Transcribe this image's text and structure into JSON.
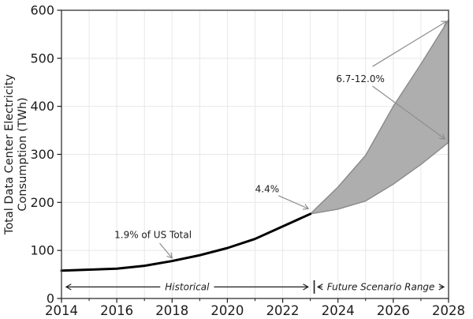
{
  "chart_data": {
    "type": "line",
    "title": "",
    "ylabel_lines": [
      "Total Data Center Electricity",
      "Consumption (TWh)"
    ],
    "xlabel": "",
    "xlim": [
      2014,
      2028
    ],
    "ylim": [
      0,
      600
    ],
    "x_major_ticks": [
      2014,
      2016,
      2018,
      2020,
      2022,
      2024,
      2026,
      2028
    ],
    "x_minor_ticks": [
      2015,
      2017,
      2019,
      2021,
      2023,
      2025,
      2027
    ],
    "y_major_ticks": [
      0,
      100,
      200,
      300,
      400,
      500,
      600
    ],
    "grid": {
      "vertical_every_year": true,
      "horizontal_every": 100
    },
    "series": [
      {
        "name": "Historical",
        "type": "line",
        "color": "#000000",
        "linewidth": 3,
        "x": [
          2014,
          2015,
          2016,
          2017,
          2018,
          2019,
          2020,
          2021,
          2022,
          2023
        ],
        "y": [
          58,
          60,
          62,
          68,
          78,
          90,
          105,
          124,
          150,
          176
        ]
      },
      {
        "name": "Future Scenario Range",
        "type": "band",
        "fill": "#aeaeae",
        "edge": "#8d8d8d",
        "x": [
          2023,
          2024,
          2025,
          2026,
          2027,
          2028
        ],
        "upper": [
          176,
          232,
          298,
          400,
          488,
          580
        ],
        "lower": [
          176,
          186,
          203,
          238,
          279,
          325
        ]
      }
    ],
    "annotations": [
      {
        "id": "pct-2018",
        "label": "1.9% of US Total",
        "text_x": 2017.31,
        "text_y": 132,
        "arrows": [
          {
            "x1": 2017.55,
            "y1": 115,
            "x2": 2018.0,
            "y2": 84
          }
        ]
      },
      {
        "id": "pct-2023",
        "label": "4.4%",
        "text_x": 2021.44,
        "text_y": 228,
        "arrows": [
          {
            "x1": 2021.85,
            "y1": 214,
            "x2": 2022.93,
            "y2": 187
          }
        ]
      },
      {
        "id": "pct-2028",
        "label": "6.7-12.0%",
        "text_x": 2024.81,
        "text_y": 457,
        "arrows": [
          {
            "x1": 2025.25,
            "y1": 483,
            "x2": 2027.93,
            "y2": 577
          },
          {
            "x1": 2025.25,
            "y1": 442,
            "x2": 2027.87,
            "y2": 332
          }
        ]
      }
    ],
    "span_labels": [
      {
        "id": "historical-span",
        "label": "Historical",
        "x1": 2014.17,
        "x2": 2022.92,
        "y": 24
      },
      {
        "id": "future-span",
        "label": "Future Scenario Range",
        "x1": 2023.27,
        "x2": 2027.83,
        "y": 24
      }
    ],
    "divider": {
      "x": 2023.14,
      "y1": 10,
      "y2": 38
    },
    "colors": {
      "line": "#000000",
      "band_fill": "#aeaeae",
      "band_edge": "#8d8d8d",
      "annotation_arrow": "#8d8d8d",
      "span_arrow": "#1c1c1c",
      "grid": "#e8e8e8",
      "spine": "#424242",
      "text": "#1c1c1c"
    }
  }
}
